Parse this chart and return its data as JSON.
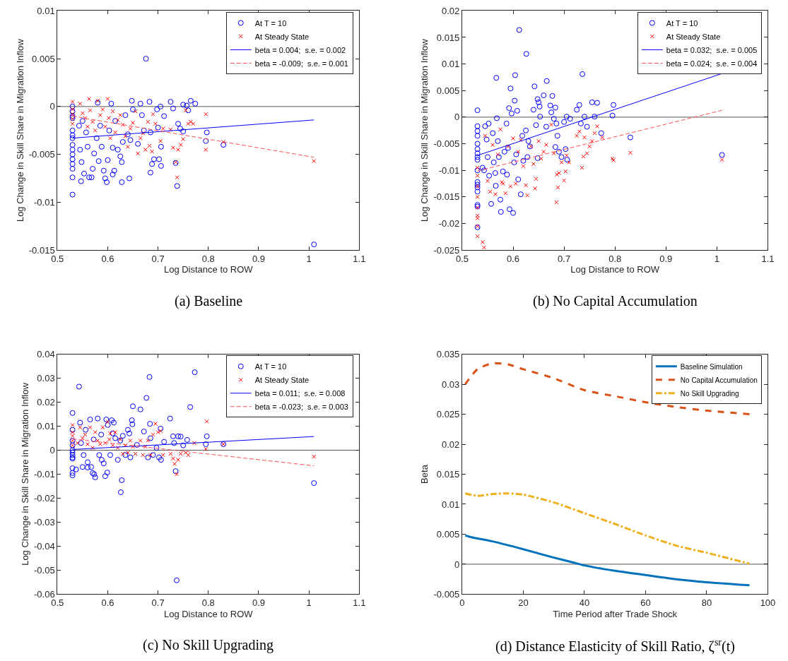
{
  "chart_data": [
    {
      "type": "scatter",
      "title": "(a) Baseline",
      "xlabel": "Log Distance to ROW",
      "ylabel": "Log Change in Skill Share in Migration Inflow",
      "xlim": [
        0.5,
        1.1
      ],
      "xticks": [
        0.5,
        0.6,
        0.7,
        0.8,
        0.9,
        1,
        1.1
      ],
      "ylim": [
        -0.015,
        0.01
      ],
      "yticks": [
        -0.015,
        -0.01,
        -0.005,
        0,
        0.005,
        0.01
      ],
      "legend": "top right",
      "grid": false,
      "ref_lines": [
        {
          "axis": "y",
          "value": 0,
          "color": "#555555"
        }
      ],
      "series": [
        {
          "name": "At T = 10",
          "color": "#0000ff",
          "marker": "circle",
          "x": [
            0.53,
            0.53,
            0.53,
            0.53,
            0.53,
            0.53,
            0.53,
            0.53,
            0.53,
            0.53,
            0.53,
            0.53,
            0.53,
            0.53,
            0.53,
            0.676,
            0.543,
            0.55,
            0.545,
            0.548,
            0.547,
            0.553,
            0.557,
            0.56,
            0.563,
            0.568,
            0.57,
            0.573,
            0.578,
            0.58,
            0.582,
            0.585,
            0.588,
            0.592,
            0.595,
            0.598,
            0.6,
            0.603,
            0.607,
            0.61,
            0.61,
            0.613,
            0.615,
            0.62,
            0.625,
            0.628,
            0.628,
            0.63,
            0.635,
            0.64,
            0.643,
            0.645,
            0.648,
            0.65,
            0.66,
            0.665,
            0.668,
            0.672,
            0.683,
            0.685,
            0.685,
            0.688,
            0.692,
            0.698,
            0.7,
            0.702,
            0.705,
            0.706,
            0.706,
            0.712,
            0.725,
            0.73,
            0.735,
            0.738,
            0.74,
            0.744,
            0.75,
            0.75,
            0.757,
            0.76,
            0.765,
            0.774,
            0.795,
            0.797,
            0.83,
            1.01
          ],
          "values": [
            0,
            -0.0005,
            -0.001,
            -0.0012,
            -0.0025,
            -0.003,
            -0.0033,
            -0.004,
            -0.0045,
            -0.005,
            -0.0055,
            -0.006,
            -0.0065,
            -0.0074,
            -0.0092,
            0.005,
            -0.002,
            -0.0015,
            -0.0045,
            -0.0058,
            -0.0078,
            -0.007,
            -0.0027,
            -0.0042,
            -0.0074,
            -0.0074,
            -0.0065,
            -0.0049,
            -0.0033,
            0.0004,
            -0.0057,
            -0.002,
            -0.0042,
            -0.0067,
            -0.0075,
            -0.0079,
            -0.0056,
            -0.0025,
            0.0003,
            -0.0043,
            -0.0071,
            -0.0067,
            -0.0015,
            -0.0045,
            -0.0052,
            -0.0079,
            -0.0058,
            -0.0037,
            -0.0009,
            -0.0029,
            -0.0075,
            -0.0035,
            0.0006,
            -0.0003,
            -0.0039,
            0.0003,
            -0.0009,
            -0.0025,
            0.0005,
            -0.0027,
            -0.0069,
            -0.006,
            -0.0055,
            -0.0003,
            -0.0022,
            -0.0055,
            0,
            -0.0062,
            -0.0042,
            -0.001,
            0.0005,
            -0.0002,
            -0.0059,
            -0.0083,
            -0.0018,
            -0.0023,
            -0.0026,
            0.0002,
            0.0001,
            -0.0004,
            0.0006,
            0.0003,
            -0.0036,
            -0.0027,
            -0.004,
            -0.0144
          ]
        },
        {
          "name": "At Steady State",
          "color": "#ff0000",
          "marker": "cross",
          "x": [
            0.53,
            0.53,
            0.53,
            0.53,
            0.53,
            0.545,
            0.55,
            0.555,
            0.56,
            0.563,
            0.565,
            0.57,
            0.575,
            0.58,
            0.585,
            0.59,
            0.595,
            0.6,
            0.602,
            0.605,
            0.61,
            0.615,
            0.62,
            0.625,
            0.63,
            0.635,
            0.64,
            0.645,
            0.65,
            0.655,
            0.66,
            0.665,
            0.67,
            0.675,
            0.68,
            0.683,
            0.688,
            0.69,
            0.695,
            0.705,
            0.71,
            0.725,
            0.73,
            0.735,
            0.738,
            0.74,
            0.745,
            0.75,
            0.755,
            0.76,
            0.765,
            0.77,
            0.795,
            0.795,
            0.83,
            1.01
          ],
          "values": [
            0.0005,
            -0.0003,
            -0.0008,
            -0.0018,
            -0.0013,
            0.0003,
            -0.0007,
            -0.0012,
            -0.0021,
            0.0008,
            -0.0004,
            -0.0016,
            -0.0025,
            0.0006,
            -0.0009,
            -0.0003,
            -0.0021,
            0.0008,
            -0.0012,
            -0.0033,
            -0.0005,
            -0.0027,
            -0.0014,
            -0.0009,
            -0.0019,
            -0.0031,
            -0.0042,
            -0.0023,
            -0.0017,
            -0.0005,
            -0.0049,
            -0.0033,
            -0.0028,
            -0.0045,
            -0.0016,
            -0.0041,
            -0.0047,
            -0.0008,
            -0.0018,
            -0.0036,
            -0.0023,
            -0.0024,
            -0.0043,
            -0.0058,
            -0.0074,
            -0.0045,
            -0.004,
            -0.0034,
            -0.0004,
            -0.0018,
            -0.0016,
            -0.0018,
            -0.0008,
            -0.0045,
            -0.0037,
            -0.0057
          ]
        },
        {
          "name": "beta = 0.004;  s.e. = 0.002",
          "type": "line",
          "color": "#0000ff",
          "line_style": "solid",
          "x": [
            0.53,
            1.01
          ],
          "values": [
            -0.0033,
            -0.0014
          ]
        },
        {
          "name": "beta = -0.009;  s.e. = 0.001",
          "type": "line",
          "color": "#ff5050",
          "line_style": "dashed",
          "x": [
            0.53,
            1.01
          ],
          "values": [
            -0.001,
            -0.0053
          ]
        }
      ]
    },
    {
      "type": "scatter",
      "title": "(b) No Capital Accumulation",
      "xlabel": "Log Distance to ROW",
      "ylabel": "Log Change in Skill Share in Migration Inflow",
      "xlim": [
        0.5,
        1.1
      ],
      "xticks": [
        0.5,
        0.6,
        0.7,
        0.8,
        0.9,
        1,
        1.1
      ],
      "ylim": [
        -0.025,
        0.02
      ],
      "yticks": [
        -0.025,
        -0.02,
        -0.015,
        -0.01,
        -0.005,
        0,
        0.005,
        0.01,
        0.015,
        0.02
      ],
      "legend": "top right",
      "grid": false,
      "ref_lines": [
        {
          "axis": "y",
          "value": 0,
          "color": "#555555"
        }
      ],
      "series": [
        {
          "name": "At T = 10",
          "color": "#0000ff",
          "marker": "circle",
          "x": [
            0.53,
            0.53,
            0.53,
            0.53,
            0.53,
            0.53,
            0.53,
            0.53,
            0.53,
            0.53,
            0.53,
            0.53,
            0.53,
            0.53,
            0.53,
            0.53,
            0.53,
            0.54,
            0.543,
            0.545,
            0.548,
            0.55,
            0.552,
            0.553,
            0.557,
            0.56,
            0.562,
            0.565,
            0.566,
            0.567,
            0.568,
            0.57,
            0.572,
            0.575,
            0.576,
            0.58,
            0.583,
            0.587,
            0.588,
            0.59,
            0.592,
            0.593,
            0.595,
            0.597,
            0.6,
            0.602,
            0.603,
            0.604,
            0.606,
            0.608,
            0.61,
            0.612,
            0.615,
            0.618,
            0.62,
            0.625,
            0.626,
            0.628,
            0.63,
            0.633,
            0.64,
            0.642,
            0.645,
            0.648,
            0.648,
            0.65,
            0.652,
            0.653,
            0.66,
            0.665,
            0.666,
            0.673,
            0.675,
            0.677,
            0.68,
            0.683,
            0.683,
            0.685,
            0.687,
            0.69,
            0.695,
            0.7,
            0.703,
            0.705,
            0.706,
            0.712,
            0.725,
            0.73,
            0.733,
            0.736,
            0.74,
            0.745,
            0.755,
            0.76,
            0.765,
            0.773,
            0.795,
            0.797,
            0.83,
            1.01
          ],
          "values": [
            0.0013,
            -0.0017,
            -0.0026,
            -0.0035,
            -0.005,
            -0.006,
            -0.0068,
            -0.0075,
            -0.008,
            -0.01,
            -0.0122,
            -0.0127,
            -0.0132,
            -0.014,
            -0.0165,
            -0.0168,
            -0.0207,
            -0.0095,
            -0.01,
            -0.0017,
            -0.0042,
            -0.0075,
            -0.0012,
            -0.011,
            -0.0163,
            -0.003,
            -0.0085,
            -0.0105,
            -0.0129,
            0.0074,
            -0.0002,
            -0.0045,
            -0.0075,
            -0.0155,
            -0.0178,
            -0.0102,
            -0.0065,
            -0.0012,
            -0.0108,
            -0.0058,
            0.0017,
            -0.0173,
            0.0054,
            0.0007,
            -0.018,
            -0.0085,
            0.0031,
            0.0079,
            -0.007,
            0.0012,
            -0.0117,
            0.0164,
            -0.0145,
            -0.0035,
            -0.0082,
            -0.0025,
            0.0119,
            -0.0075,
            -0.0045,
            -0.0055,
            0.0014,
            0.0058,
            -0.0015,
            0.0034,
            -0.0077,
            0.0028,
            0.002,
            0.0001,
            0.0041,
            -0.0018,
            0.0068,
            0.0022,
            0.0009,
            0.004,
            -0.0003,
            0.0018,
            -0.0056,
            -0.0012,
            -0.0035,
            -0.0065,
            -0.0075,
            -0.0009,
            -0.006,
            0.0001,
            -0.008,
            -0.0003,
            0.0014,
            0.0023,
            -0.0012,
            0.0081,
            0.0001,
            -0.0018,
            0.0028,
            0.0001,
            0.0027,
            -0.003,
            0.0003,
            0.0023,
            -0.0038,
            -0.0071
          ]
        },
        {
          "name": "At Steady State",
          "color": "#ff0000",
          "marker": "cross",
          "x": [
            0.53,
            0.53,
            0.53,
            0.53,
            0.53,
            0.53,
            0.53,
            0.53,
            0.53,
            0.54,
            0.543,
            0.545,
            0.55,
            0.555,
            0.56,
            0.565,
            0.57,
            0.575,
            0.578,
            0.58,
            0.585,
            0.59,
            0.595,
            0.6,
            0.605,
            0.61,
            0.615,
            0.62,
            0.625,
            0.628,
            0.635,
            0.64,
            0.643,
            0.645,
            0.65,
            0.655,
            0.66,
            0.665,
            0.675,
            0.68,
            0.685,
            0.686,
            0.688,
            0.69,
            0.695,
            0.7,
            0.703,
            0.705,
            0.71,
            0.725,
            0.73,
            0.735,
            0.738,
            0.74,
            0.745,
            0.75,
            0.755,
            0.76,
            0.765,
            0.775,
            0.795,
            0.797,
            0.83,
            1.01
          ],
          "values": [
            -0.0095,
            -0.011,
            -0.013,
            -0.015,
            -0.017,
            -0.0185,
            -0.019,
            -0.0205,
            -0.0224,
            -0.0235,
            -0.0245,
            -0.0035,
            -0.012,
            -0.014,
            -0.0052,
            -0.0145,
            -0.007,
            -0.0023,
            -0.0122,
            -0.0125,
            -0.0143,
            -0.0055,
            -0.013,
            -0.004,
            -0.0125,
            -0.0065,
            -0.0043,
            -0.0092,
            -0.0128,
            -0.0147,
            -0.0055,
            -0.0088,
            -0.0134,
            -0.0116,
            -0.0045,
            -0.0078,
            -0.0065,
            -0.0052,
            -0.0014,
            -0.0068,
            -0.016,
            -0.0108,
            -0.0132,
            -0.0105,
            -0.0085,
            -0.0119,
            -0.0102,
            -0.0072,
            -0.0085,
            -0.0035,
            -0.0027,
            -0.0095,
            -0.0074,
            -0.0038,
            -0.0068,
            -0.0055,
            -0.0045,
            -0.003,
            -0.0017,
            -0.0038,
            -0.0078,
            -0.0081,
            -0.0067,
            -0.008
          ]
        },
        {
          "name": "beta = 0.032;  s.e. = 0.005",
          "type": "line",
          "color": "#0000ff",
          "line_style": "solid",
          "x": [
            0.53,
            1.01
          ],
          "values": [
            -0.0072,
            0.0082
          ]
        },
        {
          "name": "beta = 0.024;  s.e. = 0.004",
          "type": "line",
          "color": "#ff5050",
          "line_style": "dashed",
          "x": [
            0.53,
            1.01
          ],
          "values": [
            -0.0101,
            0.0013
          ]
        }
      ]
    },
    {
      "type": "scatter",
      "title": "(c) No Skill Upgrading",
      "xlabel": "Log Distance to ROW",
      "ylabel": "Log Change in Skill Share in Migration Inflow",
      "xlim": [
        0.5,
        1.1
      ],
      "xticks": [
        0.5,
        0.6,
        0.7,
        0.8,
        0.9,
        1,
        1.1
      ],
      "ylim": [
        -0.06,
        0.04
      ],
      "yticks": [
        -0.06,
        -0.05,
        -0.04,
        -0.03,
        -0.02,
        -0.01,
        0,
        0.01,
        0.02,
        0.03,
        0.04
      ],
      "legend": "top right",
      "grid": false,
      "ref_lines": [
        {
          "axis": "y",
          "value": 0,
          "color": "#555555"
        }
      ],
      "series": [
        {
          "name": "At T = 10",
          "color": "#0000ff",
          "marker": "circle",
          "x": [
            0.53,
            0.53,
            0.53,
            0.53,
            0.53,
            0.53,
            0.53,
            0.53,
            0.53,
            0.53,
            0.53,
            0.53,
            0.537,
            0.543,
            0.545,
            0.547,
            0.55,
            0.552,
            0.556,
            0.56,
            0.56,
            0.565,
            0.567,
            0.57,
            0.572,
            0.573,
            0.575,
            0.58,
            0.583,
            0.587,
            0.588,
            0.592,
            0.595,
            0.597,
            0.599,
            0.6,
            0.605,
            0.608,
            0.61,
            0.612,
            0.615,
            0.62,
            0.625,
            0.626,
            0.628,
            0.63,
            0.635,
            0.64,
            0.643,
            0.645,
            0.648,
            0.649,
            0.65,
            0.658,
            0.665,
            0.672,
            0.677,
            0.68,
            0.683,
            0.684,
            0.685,
            0.69,
            0.697,
            0.702,
            0.705,
            0.706,
            0.712,
            0.724,
            0.73,
            0.732,
            0.735,
            0.737,
            0.74,
            0.745,
            0.75,
            0.758,
            0.764,
            0.773,
            0.795,
            0.797,
            0.83,
            1.01
          ],
          "values": [
            0.0155,
            0.0085,
            0.004,
            0.002,
            0,
            -0.001,
            -0.002,
            -0.003,
            -0.0035,
            -0.0075,
            -0.0095,
            -0.0105,
            -0.008,
            0.0265,
            0.0115,
            0.003,
            -0.007,
            -0.002,
            0.0085,
            -0.005,
            -0.0072,
            0.0128,
            -0.007,
            -0.0095,
            0.0045,
            -0.01,
            -0.0113,
            0.0132,
            -0.002,
            0.0065,
            -0.004,
            -0.0055,
            -0.0108,
            0.0128,
            -0.0093,
            0.0105,
            -0.002,
            0.0125,
            0.007,
            0.0115,
            0.005,
            -0.004,
            0.004,
            -0.0175,
            -0.0125,
            0.006,
            -0.002,
            0.0085,
            0.007,
            -0.003,
            0.0125,
            0.0108,
            0.0183,
            0.0022,
            0.017,
            0.0078,
            0.0218,
            -0.003,
            0.0305,
            0.011,
            0.005,
            -0.002,
            0.001,
            -0.003,
            0.009,
            -0.004,
            0.0035,
            0.0132,
            0.0058,
            0.003,
            -0.0087,
            -0.0542,
            0.0058,
            0.0057,
            0.002,
            0.0043,
            0.018,
            0.0325,
            0.0025,
            0.0058,
            0.0025,
            -0.0137
          ]
        },
        {
          "name": "At Steady State",
          "color": "#ff0000",
          "marker": "cross",
          "x": [
            0.53,
            0.53,
            0.53,
            0.53,
            0.53,
            0.54,
            0.545,
            0.55,
            0.555,
            0.56,
            0.565,
            0.57,
            0.575,
            0.58,
            0.585,
            0.59,
            0.595,
            0.6,
            0.603,
            0.605,
            0.61,
            0.615,
            0.62,
            0.625,
            0.63,
            0.635,
            0.64,
            0.645,
            0.65,
            0.655,
            0.665,
            0.67,
            0.675,
            0.68,
            0.685,
            0.69,
            0.695,
            0.7,
            0.705,
            0.71,
            0.725,
            0.73,
            0.733,
            0.737,
            0.74,
            0.745,
            0.755,
            0.76,
            0.772,
            0.795,
            0.797,
            0.83,
            1.01
          ],
          "values": [
            0.0105,
            0.0075,
            0.006,
            0.004,
            0.002,
            0.003,
            0.0095,
            0.005,
            0.0065,
            0.0025,
            0.0095,
            0.001,
            0.0075,
            0.004,
            0.0025,
            0.0095,
            0.003,
            0.0118,
            0.0045,
            0.007,
            0.002,
            0.0075,
            0.001,
            0.0045,
            -0.0015,
            0.002,
            -0.001,
            0.004,
            0.0015,
            -0.0015,
            0.004,
            -0.002,
            0.0015,
            0.004,
            -0.002,
            0.0065,
            0.011,
            0.0075,
            0.008,
            -0.002,
            -0.0015,
            -0.0035,
            -0.0057,
            -0.01,
            -0.004,
            -0.0015,
            -0.001,
            -0.002,
            0.003,
            0.0005,
            0.012,
            0.0025,
            -0.0027
          ]
        },
        {
          "name": "beta = 0.011;  s.e. = 0.008",
          "type": "line",
          "color": "#0000ff",
          "line_style": "solid",
          "x": [
            0.53,
            1.01
          ],
          "values": [
            0.0003,
            0.0057
          ]
        },
        {
          "name": "beta = -0.023;  s.e. = 0.003",
          "type": "line",
          "color": "#ff5050",
          "line_style": "dashed",
          "x": [
            0.53,
            1.01
          ],
          "values": [
            0.0047,
            -0.0065
          ]
        }
      ]
    },
    {
      "type": "line",
      "title": "(d) Distance Elasticity of Skill Ratio, ζ$^{sr}$(t)",
      "xlabel": "Time Period after Trade Shock",
      "ylabel": "Beta",
      "xlim": [
        0,
        100
      ],
      "xticks": [
        0,
        20,
        40,
        60,
        80,
        100
      ],
      "ylim": [
        -0.005,
        0.035
      ],
      "yticks": [
        -0.005,
        0,
        0.005,
        0.01,
        0.015,
        0.02,
        0.025,
        0.03,
        0.035
      ],
      "legend": "top right",
      "grid": false,
      "ref_lines": [
        {
          "axis": "y",
          "value": 0,
          "color": "#555555"
        }
      ],
      "series": [
        {
          "name": "Baseline Simulation",
          "color": "#0072bd",
          "line_style": "solid",
          "x": [
            1,
            3,
            10,
            20,
            30,
            37,
            40,
            50,
            60,
            70,
            80,
            94
          ],
          "values": [
            0.0048,
            0.0045,
            0.0038,
            0.0025,
            0.0011,
            0.0002,
            -0.0002,
            -0.0011,
            -0.0018,
            -0.0025,
            -0.003,
            -0.0035
          ]
        },
        {
          "name": "No Capital Accumulation",
          "color": "#d95319",
          "line_style": "dashed",
          "x": [
            1,
            5,
            10,
            15,
            20,
            30,
            40,
            50,
            60,
            70,
            80,
            94
          ],
          "values": [
            0.03,
            0.0325,
            0.0335,
            0.0333,
            0.0325,
            0.031,
            0.029,
            0.028,
            0.027,
            0.0262,
            0.0256,
            0.025
          ]
        },
        {
          "name": "No Skill Upgrading",
          "color": "#edb120",
          "line_style": "dashdot",
          "x": [
            1,
            5,
            10,
            15,
            20,
            30,
            40,
            50,
            60,
            70,
            80,
            94
          ],
          "values": [
            0.0118,
            0.0114,
            0.0117,
            0.0118,
            0.0116,
            0.0103,
            0.0085,
            0.0067,
            0.0048,
            0.0031,
            0.0019,
            0.0001
          ]
        }
      ]
    }
  ]
}
